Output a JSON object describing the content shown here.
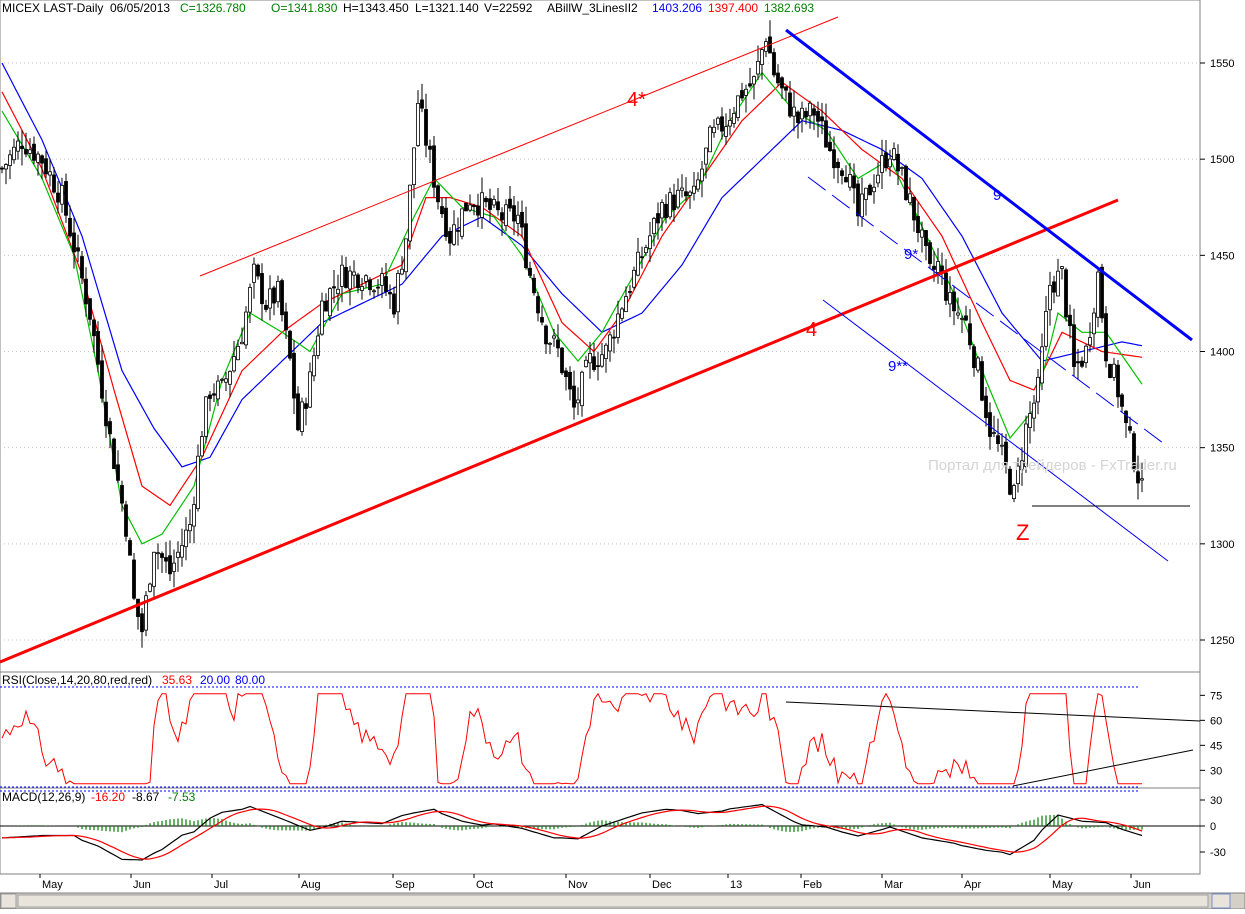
{
  "header": {
    "symbol": "MICEX LAST-Daily",
    "date": "06/05/2013",
    "close": "C=1326.780",
    "open": "O=1341.830",
    "high": "H=1343.450",
    "low": "L=1321.140",
    "volume": "V=22592",
    "indicator": "ABillW_3LinesII2",
    "ma_values": [
      "1403.206",
      "1397.400",
      "1382.693"
    ]
  },
  "colors": {
    "ma_slow": "#0000ff",
    "ma_mid": "#ff0000",
    "ma_fast": "#00c000",
    "rsi_line": "#ff0000",
    "macd_line": "#000000",
    "signal_line": "#ff0000",
    "histogram": "#008000",
    "level_line": "#0000ff",
    "grid": "#c8c8c8",
    "up_color": "#000000",
    "down_color": "#000000"
  },
  "annotations": {
    "label_4star": "4*",
    "label_4": "4",
    "label_9": "9",
    "label_9star": "9*",
    "label_9dstar": "9**",
    "label_z": "Z",
    "watermark": "Портал для трейдеров - FxTrader.ru"
  },
  "rsi": {
    "label": "RSI(Close,14,20,80,red,red)",
    "value": "35.63",
    "low_level": "20.00",
    "high_level": "80.00",
    "ticks": [
      "75",
      "60",
      "45",
      "30"
    ]
  },
  "macd": {
    "label": "MACD(12,26,9)",
    "macd_value": "-16.20",
    "signal_value": "-8.67",
    "hist_value": "-7.53",
    "ticks": [
      "30",
      "0",
      "-30"
    ]
  },
  "chart_data": {
    "type": "candlestick",
    "period": "May 2012 – Jun 2013 (daily)",
    "x_labels": [
      "May",
      "Jun",
      "Jul",
      "Aug",
      "Sep",
      "Oct",
      "Nov",
      "Dec",
      "13",
      "Feb",
      "Mar",
      "Apr",
      "May",
      "Jun"
    ],
    "y_ticks": [
      "1550",
      "1500",
      "1450",
      "1400",
      "1350",
      "1300",
      "1250"
    ],
    "ylim": [
      1230,
      1570
    ],
    "close_path": [
      [
        0,
        1495
      ],
      [
        5,
        1510
      ],
      [
        10,
        1500
      ],
      [
        15,
        1480
      ],
      [
        18,
        1455
      ],
      [
        22,
        1420
      ],
      [
        27,
        1355
      ],
      [
        31,
        1310
      ],
      [
        33,
        1270
      ],
      [
        35,
        1255
      ],
      [
        38,
        1300
      ],
      [
        42,
        1285
      ],
      [
        47,
        1310
      ],
      [
        50,
        1360
      ],
      [
        52,
        1380
      ],
      [
        55,
        1380
      ],
      [
        60,
        1410
      ],
      [
        63,
        1440
      ],
      [
        66,
        1425
      ],
      [
        69,
        1430
      ],
      [
        72,
        1395
      ],
      [
        74,
        1360
      ],
      [
        77,
        1385
      ],
      [
        80,
        1425
      ],
      [
        85,
        1440
      ],
      [
        90,
        1440
      ],
      [
        95,
        1435
      ],
      [
        98,
        1425
      ],
      [
        101,
        1460
      ],
      [
        104,
        1530
      ],
      [
        106,
        1510
      ],
      [
        109,
        1480
      ],
      [
        112,
        1460
      ],
      [
        117,
        1480
      ],
      [
        121,
        1475
      ],
      [
        125,
        1470
      ],
      [
        129,
        1470
      ],
      [
        132,
        1440
      ],
      [
        136,
        1410
      ],
      [
        139,
        1400
      ],
      [
        143,
        1370
      ],
      [
        147,
        1395
      ],
      [
        151,
        1400
      ],
      [
        155,
        1425
      ],
      [
        160,
        1450
      ],
      [
        165,
        1475
      ],
      [
        169,
        1480
      ],
      [
        173,
        1480
      ],
      [
        177,
        1510
      ],
      [
        181,
        1520
      ],
      [
        185,
        1535
      ],
      [
        188,
        1540
      ],
      [
        191,
        1565
      ],
      [
        193,
        1545
      ],
      [
        195,
        1535
      ],
      [
        199,
        1520
      ],
      [
        203,
        1525
      ],
      [
        207,
        1505
      ],
      [
        211,
        1495
      ],
      [
        214,
        1470
      ],
      [
        218,
        1490
      ],
      [
        222,
        1505
      ],
      [
        225,
        1490
      ],
      [
        229,
        1465
      ],
      [
        232,
        1440
      ],
      [
        234,
        1445
      ],
      [
        237,
        1425
      ],
      [
        241,
        1415
      ],
      [
        244,
        1390
      ],
      [
        247,
        1360
      ],
      [
        250,
        1345
      ],
      [
        253,
        1325
      ],
      [
        256,
        1360
      ],
      [
        259,
        1380
      ],
      [
        262,
        1435
      ],
      [
        265,
        1440
      ],
      [
        268,
        1390
      ],
      [
        271,
        1400
      ],
      [
        274,
        1440
      ],
      [
        276,
        1400
      ],
      [
        279,
        1380
      ],
      [
        281,
        1360
      ],
      [
        283,
        1345
      ],
      [
        285,
        1327
      ]
    ],
    "ma_slow": [
      [
        0,
        1550
      ],
      [
        10,
        1510
      ],
      [
        20,
        1460
      ],
      [
        30,
        1390
      ],
      [
        38,
        1360
      ],
      [
        45,
        1340
      ],
      [
        52,
        1345
      ],
      [
        60,
        1375
      ],
      [
        70,
        1395
      ],
      [
        80,
        1415
      ],
      [
        90,
        1425
      ],
      [
        100,
        1435
      ],
      [
        110,
        1460
      ],
      [
        120,
        1470
      ],
      [
        130,
        1455
      ],
      [
        140,
        1430
      ],
      [
        150,
        1410
      ],
      [
        160,
        1420
      ],
      [
        170,
        1445
      ],
      [
        180,
        1480
      ],
      [
        190,
        1500
      ],
      [
        200,
        1520
      ],
      [
        210,
        1515
      ],
      [
        220,
        1505
      ],
      [
        230,
        1490
      ],
      [
        240,
        1460
      ],
      [
        250,
        1420
      ],
      [
        260,
        1395
      ],
      [
        270,
        1400
      ],
      [
        280,
        1405
      ],
      [
        285,
        1403
      ]
    ],
    "ma_mid": [
      [
        0,
        1535
      ],
      [
        10,
        1495
      ],
      [
        20,
        1440
      ],
      [
        28,
        1380
      ],
      [
        35,
        1330
      ],
      [
        42,
        1320
      ],
      [
        50,
        1345
      ],
      [
        60,
        1390
      ],
      [
        70,
        1410
      ],
      [
        80,
        1425
      ],
      [
        90,
        1435
      ],
      [
        100,
        1445
      ],
      [
        106,
        1480
      ],
      [
        112,
        1480
      ],
      [
        120,
        1475
      ],
      [
        130,
        1460
      ],
      [
        140,
        1415
      ],
      [
        148,
        1400
      ],
      [
        155,
        1420
      ],
      [
        165,
        1460
      ],
      [
        175,
        1490
      ],
      [
        185,
        1520
      ],
      [
        195,
        1540
      ],
      [
        205,
        1525
      ],
      [
        215,
        1505
      ],
      [
        225,
        1490
      ],
      [
        235,
        1460
      ],
      [
        245,
        1415
      ],
      [
        252,
        1385
      ],
      [
        258,
        1380
      ],
      [
        265,
        1410
      ],
      [
        275,
        1400
      ],
      [
        285,
        1397
      ]
    ],
    "ma_fast": [
      [
        0,
        1525
      ],
      [
        10,
        1490
      ],
      [
        18,
        1450
      ],
      [
        24,
        1390
      ],
      [
        30,
        1320
      ],
      [
        35,
        1300
      ],
      [
        40,
        1305
      ],
      [
        48,
        1330
      ],
      [
        55,
        1385
      ],
      [
        62,
        1420
      ],
      [
        70,
        1410
      ],
      [
        77,
        1400
      ],
      [
        85,
        1430
      ],
      [
        95,
        1435
      ],
      [
        103,
        1470
      ],
      [
        108,
        1490
      ],
      [
        115,
        1475
      ],
      [
        123,
        1470
      ],
      [
        130,
        1450
      ],
      [
        138,
        1410
      ],
      [
        144,
        1395
      ],
      [
        150,
        1410
      ],
      [
        158,
        1440
      ],
      [
        166,
        1470
      ],
      [
        174,
        1485
      ],
      [
        182,
        1520
      ],
      [
        190,
        1545
      ],
      [
        198,
        1525
      ],
      [
        206,
        1515
      ],
      [
        214,
        1490
      ],
      [
        222,
        1500
      ],
      [
        230,
        1465
      ],
      [
        238,
        1430
      ],
      [
        246,
        1385
      ],
      [
        252,
        1355
      ],
      [
        258,
        1370
      ],
      [
        264,
        1420
      ],
      [
        270,
        1410
      ],
      [
        276,
        1410
      ],
      [
        285,
        1383
      ]
    ]
  }
}
